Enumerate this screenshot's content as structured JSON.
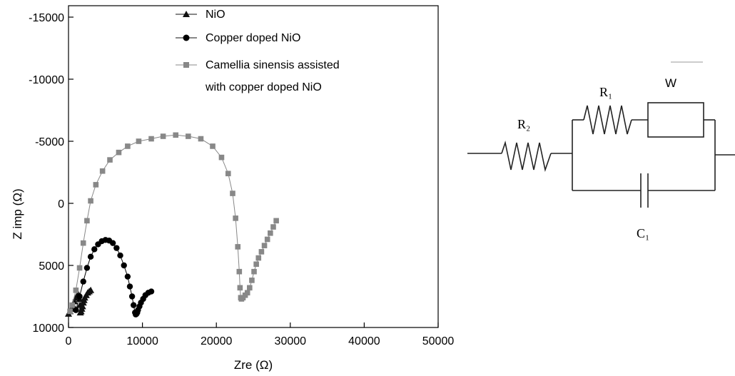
{
  "chart_data": {
    "type": "scatter",
    "xlabel": "Zre (Ω)",
    "ylabel": "Z imp (Ω)",
    "xlim": [
      0,
      50000
    ],
    "ylim": [
      10000,
      -15000
    ],
    "xticks": [
      "0",
      "10000",
      "20000",
      "30000",
      "40000",
      "50000"
    ],
    "yticks": [
      "-15000",
      "-10000",
      "-5000",
      "0",
      "5000",
      "10000"
    ],
    "legend_placement": "top-right",
    "grid": false,
    "series": [
      {
        "name": "NiO",
        "marker": "triangle",
        "color": "#111111",
        "x": [
          0,
          200,
          400,
          600,
          800,
          1000,
          1200,
          1300,
          1400,
          1500,
          1550,
          1600,
          1700,
          1800,
          1900,
          2000,
          2100,
          2200,
          2400,
          2600,
          2800,
          3000
        ],
        "y": [
          8900,
          8700,
          8500,
          8200,
          7900,
          7600,
          7400,
          7300,
          7400,
          7700,
          8200,
          8800,
          8700,
          8500,
          8300,
          8000,
          7800,
          7600,
          7400,
          7200,
          7100,
          7000
        ]
      },
      {
        "name": "Copper doped NiO",
        "marker": "circle",
        "color": "#000000",
        "x": [
          1000,
          1500,
          2000,
          2500,
          3000,
          3500,
          4000,
          4500,
          5000,
          5500,
          6000,
          6500,
          7000,
          7500,
          8000,
          8300,
          8600,
          8800,
          9000,
          9100,
          9200,
          9300,
          9400,
          9600,
          9800,
          10100,
          10400,
          10800,
          11200
        ],
        "y": [
          8600,
          7500,
          6300,
          5200,
          4300,
          3700,
          3300,
          3050,
          2950,
          3000,
          3200,
          3600,
          4200,
          5000,
          5900,
          6700,
          7500,
          8200,
          8800,
          8950,
          8900,
          8800,
          8600,
          8300,
          8000,
          7700,
          7400,
          7200,
          7100
        ]
      },
      {
        "name": "Camellia sinensis assisted with copper doped NiO",
        "marker": "square",
        "color": "#888888",
        "x": [
          200,
          500,
          1000,
          1500,
          2000,
          2500,
          3000,
          3700,
          4600,
          5600,
          6800,
          8000,
          9500,
          11200,
          12800,
          14500,
          16200,
          17900,
          19500,
          20700,
          21600,
          22200,
          22600,
          22900,
          23100,
          23200,
          23300,
          23400,
          23600,
          23900,
          24200,
          24500,
          24800,
          25100,
          25400,
          25700,
          26100,
          26500,
          26900,
          27300,
          27700,
          28100
        ],
        "y": [
          8700,
          8200,
          7000,
          5200,
          3200,
          1400,
          -200,
          -1500,
          -2600,
          -3500,
          -4100,
          -4600,
          -5000,
          -5200,
          -5400,
          -5500,
          -5400,
          -5200,
          -4600,
          -3700,
          -2400,
          -800,
          1200,
          3500,
          5500,
          6800,
          7600,
          7700,
          7600,
          7400,
          7200,
          6800,
          6200,
          5500,
          4900,
          4400,
          3900,
          3400,
          2900,
          2400,
          1900,
          1400
        ]
      }
    ],
    "circuit": {
      "labels": {
        "r2": "R₂",
        "r1": "R₁",
        "w": "W",
        "c1": "C₁"
      }
    }
  }
}
